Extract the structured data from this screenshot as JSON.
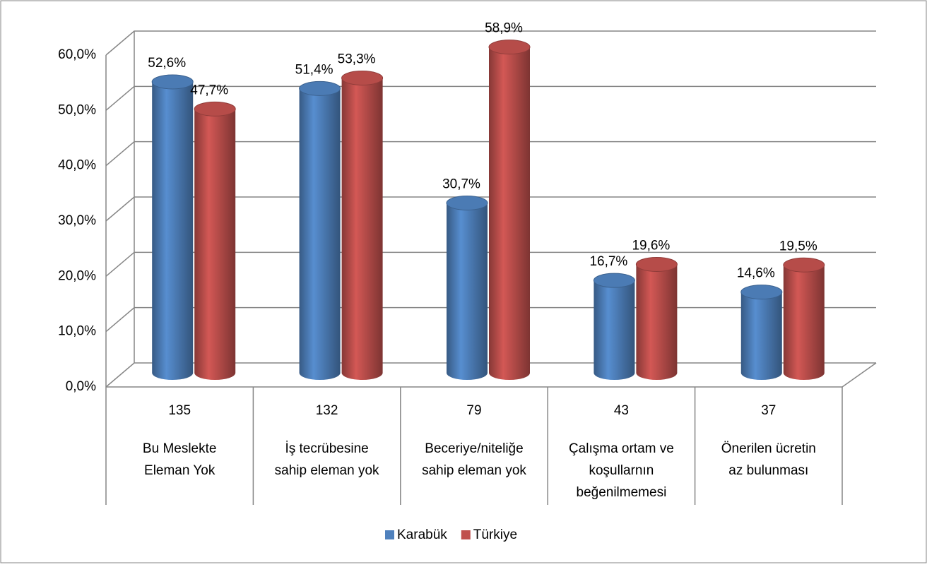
{
  "chart_data": {
    "type": "bar3d",
    "categories": [
      [
        "Bu Meslekte",
        "Eleman Yok"
      ],
      [
        "İş tecrübesine",
        "sahip eleman yok"
      ],
      [
        "Beceriye/niteliğe",
        "sahip eleman yok"
      ],
      [
        "Çalışma ortam ve",
        "koşullarnın",
        "beğenilmemesi"
      ],
      [
        "Önerilen ücretin",
        "az bulunması"
      ]
    ],
    "counts": [
      135,
      132,
      79,
      43,
      37
    ],
    "series": [
      {
        "name": "Karabük",
        "color": "#4f81bd",
        "values": [
          52.6,
          51.4,
          30.7,
          16.7,
          14.6
        ],
        "value_labels": [
          "52,6%",
          "51,4%",
          "30,7%",
          "16,7%",
          "14,6%"
        ]
      },
      {
        "name": "Türkiye",
        "color": "#c0504d",
        "values": [
          47.7,
          53.3,
          58.9,
          19.6,
          19.5
        ],
        "value_labels": [
          "47,7%",
          "53,3%",
          "58,9%",
          "19,6%",
          "19,5%"
        ]
      }
    ],
    "ylim": [
      0,
      60
    ],
    "yticks": [
      {
        "value": 0,
        "label": "0,0%"
      },
      {
        "value": 10,
        "label": "10,0%"
      },
      {
        "value": 20,
        "label": "20,0%"
      },
      {
        "value": 30,
        "label": "30,0%"
      },
      {
        "value": 40,
        "label": "40,0%"
      },
      {
        "value": 50,
        "label": "50,0%"
      },
      {
        "value": 60,
        "label": "60,0%"
      }
    ],
    "grid": true,
    "legend": "bottom"
  }
}
